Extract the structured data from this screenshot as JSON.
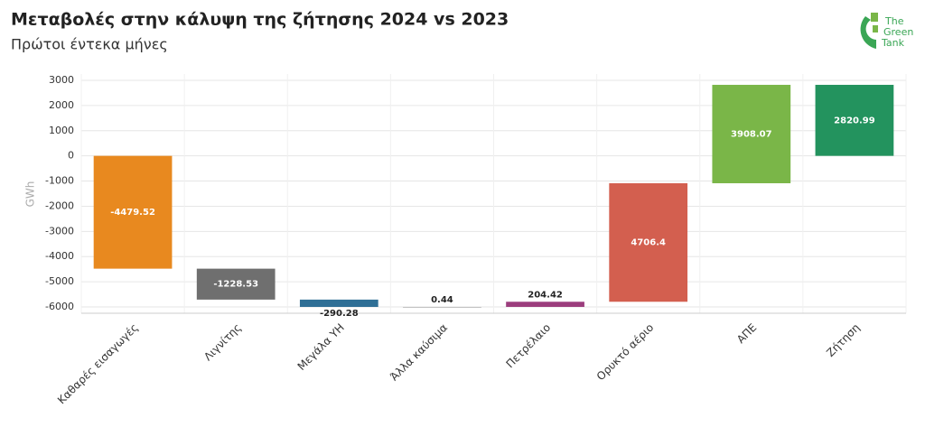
{
  "chart_data": {
    "type": "waterfall",
    "title": "Μεταβολές στην κάλυψη της ζήτησης 2024 vs 2023",
    "subtitle": "Πρώτοι έντεκα μήνες",
    "y_label": "GWh",
    "categories": [
      "Καθαρές εισαγωγές",
      "Λιγνίτης",
      "Μεγάλα ΥΗ",
      "Άλλα καύσιμα",
      "Πετρέλαιο",
      "Ορυκτό αέριο",
      "ΑΠΕ",
      "Ζήτηση"
    ],
    "values": [
      -4479.52,
      -1228.53,
      -290.28,
      0.44,
      204.42,
      4706.4,
      3908.07,
      2820.99
    ],
    "is_total": [
      false,
      false,
      false,
      false,
      false,
      false,
      false,
      true
    ],
    "colors": [
      "#e8891f",
      "#6f6f6f",
      "#2f6f96",
      "#c0c0c0",
      "#9b3d7d",
      "#d35f4f",
      "#7ab648",
      "#23935e"
    ],
    "ylim": [
      -6250,
      3250
    ],
    "yticks": [
      3000,
      2000,
      1000,
      0,
      -1000,
      -2000,
      -3000,
      -4000,
      -5000,
      -6000
    ],
    "grid": true
  },
  "logo": {
    "lines": [
      "The",
      "Green",
      "Tank"
    ]
  }
}
